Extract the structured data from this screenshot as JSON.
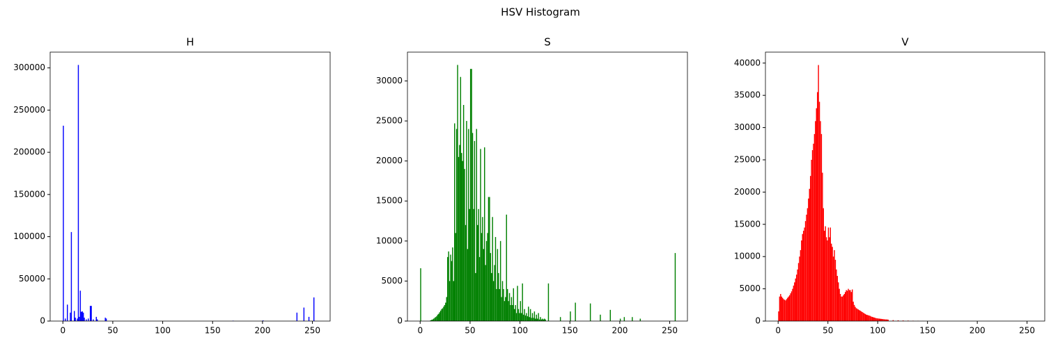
{
  "title": "HSV Histogram",
  "chart_data": [
    {
      "type": "bar",
      "title": "H",
      "color": "#0000ff",
      "x": [
        0,
        2,
        4,
        7,
        8,
        11,
        12,
        14,
        15,
        16,
        17,
        18,
        19,
        20,
        21,
        23,
        25,
        27,
        28,
        30,
        33,
        34,
        42,
        43,
        170,
        200,
        234,
        241,
        246,
        251
      ],
      "values": [
        231500,
        3000,
        19500,
        10000,
        105500,
        12000,
        4000,
        3000,
        303500,
        5000,
        36000,
        11000,
        11500,
        10000,
        4000,
        2000,
        3000,
        18000,
        18000,
        2000,
        5000,
        2000,
        4000,
        3000,
        500,
        800,
        10000,
        16000,
        5000,
        28000
      ],
      "xlim": [
        -12.75,
        267.75
      ],
      "ylim": [
        0,
        318700
      ],
      "xticks": [
        0,
        50,
        100,
        150,
        200,
        250
      ],
      "yticks": [
        0,
        50000,
        100000,
        150000,
        200000,
        250000,
        300000
      ]
    },
    {
      "type": "bar",
      "title": "S",
      "color": "#008000",
      "x": [
        0,
        10,
        11,
        12,
        13,
        14,
        15,
        16,
        17,
        18,
        19,
        20,
        21,
        22,
        23,
        24,
        25,
        26,
        27,
        28,
        29,
        30,
        31,
        32,
        33,
        34,
        35,
        36,
        37,
        38,
        39,
        40,
        41,
        42,
        43,
        44,
        45,
        46,
        47,
        48,
        49,
        50,
        51,
        52,
        53,
        54,
        55,
        56,
        57,
        58,
        59,
        60,
        61,
        62,
        63,
        64,
        65,
        66,
        67,
        68,
        69,
        70,
        71,
        72,
        73,
        74,
        75,
        76,
        77,
        78,
        79,
        80,
        81,
        82,
        83,
        84,
        85,
        86,
        87,
        88,
        89,
        90,
        91,
        92,
        93,
        94,
        95,
        96,
        97,
        98,
        99,
        100,
        101,
        102,
        103,
        104,
        105,
        106,
        107,
        108,
        109,
        110,
        111,
        112,
        113,
        114,
        115,
        116,
        117,
        118,
        119,
        120,
        121,
        122,
        123,
        124,
        125,
        128,
        140,
        150,
        155,
        170,
        180,
        190,
        200,
        204,
        212,
        220,
        255
      ],
      "values": [
        6600,
        100,
        150,
        200,
        300,
        400,
        500,
        600,
        800,
        900,
        1100,
        1300,
        1500,
        1600,
        1800,
        2000,
        2300,
        3000,
        8000,
        8700,
        5000,
        8300,
        7500,
        9200,
        5000,
        24700,
        11000,
        24000,
        32000,
        20500,
        22000,
        30500,
        21000,
        20000,
        27000,
        19000,
        12000,
        25000,
        9000,
        24000,
        14000,
        31500,
        31500,
        23500,
        14000,
        22500,
        6000,
        24000,
        12000,
        14000,
        8000,
        21500,
        11000,
        13000,
        9000,
        21700,
        7000,
        10000,
        11000,
        15500,
        15500,
        8500,
        6000,
        13000,
        5000,
        7000,
        10500,
        4000,
        9000,
        6000,
        4000,
        10000,
        3000,
        5000,
        4000,
        2500,
        3000,
        13300,
        4000,
        2500,
        3500,
        2000,
        3000,
        2000,
        4100,
        1500,
        2000,
        1000,
        4400,
        1500,
        1000,
        2500,
        1000,
        4700,
        800,
        1500,
        700,
        1000,
        600,
        1800,
        500,
        1500,
        400,
        1000,
        400,
        1200,
        300,
        800,
        300,
        1000,
        200,
        500,
        200,
        300,
        200,
        300,
        200,
        4700,
        500,
        1200,
        2300,
        2200,
        800,
        1400,
        300,
        500,
        500,
        300,
        8500
      ],
      "xlim": [
        -12.75,
        267.75
      ],
      "ylim": [
        0,
        33600
      ],
      "xticks": [
        0,
        50,
        100,
        150,
        200,
        250
      ],
      "yticks": [
        0,
        5000,
        10000,
        15000,
        20000,
        25000,
        30000
      ]
    },
    {
      "type": "bar",
      "title": "V",
      "color": "#ff0000",
      "x": [
        0,
        1,
        2,
        3,
        4,
        5,
        6,
        7,
        8,
        9,
        10,
        11,
        12,
        13,
        14,
        15,
        16,
        17,
        18,
        19,
        20,
        21,
        22,
        23,
        24,
        25,
        26,
        27,
        28,
        29,
        30,
        31,
        32,
        33,
        34,
        35,
        36,
        37,
        38,
        39,
        40,
        41,
        42,
        43,
        44,
        45,
        46,
        47,
        48,
        49,
        50,
        51,
        52,
        53,
        54,
        55,
        56,
        57,
        58,
        59,
        60,
        61,
        62,
        63,
        64,
        65,
        66,
        67,
        68,
        69,
        70,
        71,
        72,
        73,
        74,
        75,
        76,
        77,
        78,
        79,
        80,
        81,
        82,
        83,
        84,
        85,
        86,
        87,
        88,
        89,
        90,
        91,
        92,
        93,
        94,
        95,
        96,
        97,
        98,
        99,
        100,
        101,
        102,
        103,
        104,
        105,
        106,
        107,
        108,
        109,
        110,
        115,
        120,
        125,
        130,
        135,
        140,
        145,
        150
      ],
      "values": [
        1500,
        3800,
        4200,
        3800,
        3600,
        3400,
        3300,
        3200,
        3400,
        3600,
        3800,
        4000,
        4300,
        4600,
        5000,
        5500,
        6000,
        6600,
        7200,
        8000,
        9000,
        10000,
        11000,
        12500,
        13500,
        14000,
        14500,
        15500,
        16500,
        17500,
        19000,
        20500,
        22500,
        25000,
        26500,
        27500,
        29000,
        31000,
        33000,
        35500,
        39700,
        34000,
        31000,
        29000,
        23000,
        17500,
        14000,
        14700,
        13000,
        12500,
        14500,
        13000,
        14500,
        12000,
        11500,
        10000,
        11000,
        9500,
        8000,
        7000,
        6000,
        5000,
        4200,
        3800,
        3800,
        4000,
        4200,
        4500,
        4800,
        4700,
        5000,
        4800,
        4800,
        4500,
        4900,
        3000,
        2500,
        2200,
        2000,
        1900,
        1800,
        1700,
        1600,
        1500,
        1400,
        1300,
        1200,
        1100,
        1000,
        950,
        900,
        850,
        800,
        700,
        650,
        600,
        550,
        500,
        450,
        420,
        400,
        380,
        360,
        340,
        320,
        300,
        280,
        260,
        250,
        240,
        220,
        150,
        120,
        100,
        80,
        60,
        40,
        20,
        10
      ],
      "xlim": [
        -12.75,
        267.75
      ],
      "ylim": [
        0,
        41700
      ],
      "xticks": [
        0,
        50,
        100,
        150,
        200,
        250
      ],
      "yticks": [
        0,
        5000,
        10000,
        15000,
        20000,
        25000,
        30000,
        35000,
        40000
      ]
    }
  ]
}
